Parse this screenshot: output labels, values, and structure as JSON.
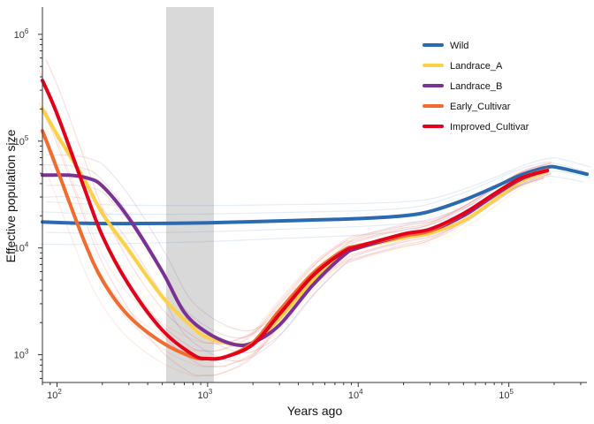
{
  "chart_data": {
    "type": "line",
    "xlabel": "Years ago",
    "ylabel": "Effective population size",
    "xscale": "log",
    "yscale": "log",
    "xlim": [
      80,
      330000
    ],
    "ylim": [
      550,
      1800000
    ],
    "x_ticks": [
      {
        "value": 100,
        "base": "10",
        "exp": "2"
      },
      {
        "value": 1000,
        "base": "10",
        "exp": "3"
      },
      {
        "value": 10000,
        "base": "10",
        "exp": "4"
      },
      {
        "value": 100000,
        "base": "10",
        "exp": "5"
      }
    ],
    "y_ticks": [
      {
        "value": 1000,
        "base": "10",
        "exp": "3"
      },
      {
        "value": 10000,
        "base": "10",
        "exp": "4"
      },
      {
        "value": 100000,
        "base": "10",
        "exp": "5"
      },
      {
        "value": 1000000,
        "base": "10",
        "exp": "6"
      }
    ],
    "shaded_region": {
      "x": [
        530,
        1100
      ],
      "color": "#d9d9d9"
    },
    "legend_position": "top-right",
    "series": [
      {
        "name": "Wild",
        "color": "#2b6ab1",
        "points": [
          [
            80,
            17500
          ],
          [
            150,
            17000
          ],
          [
            300,
            16900
          ],
          [
            1000,
            17200
          ],
          [
            3000,
            17900
          ],
          [
            10000,
            18800
          ],
          [
            20000,
            20000
          ],
          [
            30000,
            22000
          ],
          [
            50000,
            28000
          ],
          [
            80000,
            37000
          ],
          [
            120000,
            48000
          ],
          [
            180000,
            57000
          ],
          [
            220000,
            56000
          ],
          [
            330000,
            49000
          ]
        ]
      },
      {
        "name": "Landrace_A",
        "color": "#fdd049",
        "points": [
          [
            80,
            200000
          ],
          [
            100,
            115000
          ],
          [
            150,
            45000
          ],
          [
            200,
            21000
          ],
          [
            300,
            9500
          ],
          [
            500,
            3500
          ],
          [
            800,
            1800
          ],
          [
            1000,
            1450
          ],
          [
            1500,
            1250
          ],
          [
            2000,
            1300
          ],
          [
            3000,
            2200
          ],
          [
            5000,
            5000
          ],
          [
            8000,
            8800
          ],
          [
            10000,
            10000
          ],
          [
            20000,
            12500
          ],
          [
            30000,
            13800
          ],
          [
            50000,
            18000
          ],
          [
            80000,
            28000
          ],
          [
            120000,
            42000
          ],
          [
            180000,
            52000
          ]
        ]
      },
      {
        "name": "Landrace_B",
        "color": "#7b3294",
        "points": [
          [
            80,
            48000
          ],
          [
            120,
            48000
          ],
          [
            160,
            45000
          ],
          [
            200,
            38000
          ],
          [
            300,
            19000
          ],
          [
            500,
            6000
          ],
          [
            700,
            2500
          ],
          [
            1000,
            1600
          ],
          [
            1500,
            1250
          ],
          [
            2000,
            1300
          ],
          [
            3000,
            1900
          ],
          [
            5000,
            4500
          ],
          [
            8000,
            8500
          ],
          [
            10000,
            10000
          ],
          [
            20000,
            13000
          ],
          [
            30000,
            14500
          ],
          [
            50000,
            20000
          ],
          [
            80000,
            31000
          ],
          [
            120000,
            44000
          ],
          [
            180000,
            54000
          ]
        ]
      },
      {
        "name": "Early_Cultivar",
        "color": "#f26b2f",
        "points": [
          [
            80,
            125000
          ],
          [
            100,
            55000
          ],
          [
            150,
            12000
          ],
          [
            200,
            5000
          ],
          [
            300,
            2300
          ],
          [
            500,
            1300
          ],
          [
            800,
            950
          ],
          [
            1000,
            920
          ],
          [
            1300,
            950
          ],
          [
            2000,
            1300
          ],
          [
            3000,
            2600
          ],
          [
            5000,
            5800
          ],
          [
            8000,
            9500
          ],
          [
            10000,
            10500
          ],
          [
            20000,
            13000
          ],
          [
            30000,
            14500
          ],
          [
            50000,
            21000
          ],
          [
            80000,
            32000
          ],
          [
            120000,
            45000
          ],
          [
            180000,
            54000
          ]
        ]
      },
      {
        "name": "Improved_Cultivar",
        "color": "#e3001b",
        "points": [
          [
            80,
            370000
          ],
          [
            100,
            180000
          ],
          [
            150,
            38000
          ],
          [
            200,
            13000
          ],
          [
            300,
            4500
          ],
          [
            500,
            1700
          ],
          [
            800,
            1000
          ],
          [
            1000,
            920
          ],
          [
            1300,
            950
          ],
          [
            2000,
            1250
          ],
          [
            3000,
            2400
          ],
          [
            5000,
            5500
          ],
          [
            8000,
            9200
          ],
          [
            10000,
            10300
          ],
          [
            20000,
            13500
          ],
          [
            30000,
            15000
          ],
          [
            50000,
            21000
          ],
          [
            80000,
            32000
          ],
          [
            120000,
            45000
          ],
          [
            180000,
            53000
          ]
        ]
      }
    ]
  }
}
